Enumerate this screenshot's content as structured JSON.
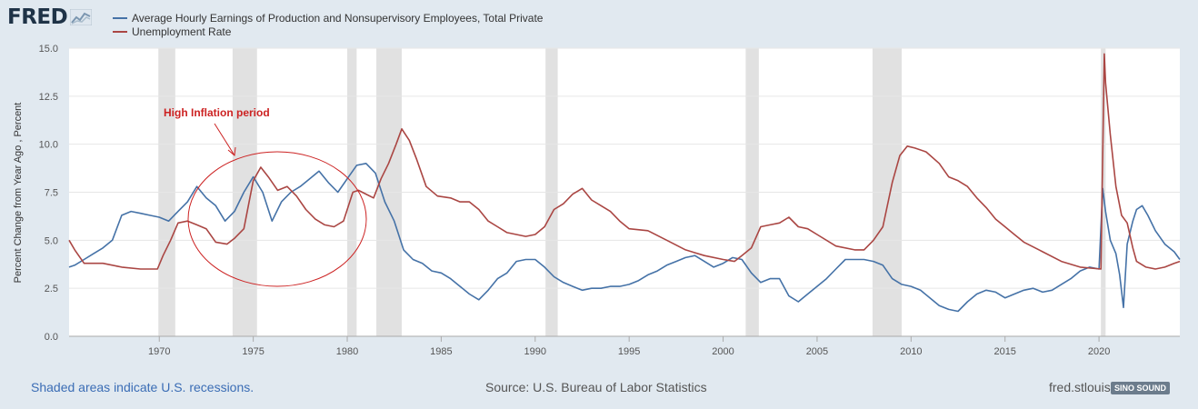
{
  "header": {
    "logo_text": "FRED",
    "logo_icon": "line-graph-icon"
  },
  "colors": {
    "series_earnings": "#4572a7",
    "series_unemployment": "#aa4643",
    "recession_shade": "#e1e1e1",
    "annotation": "#cc2222",
    "plot_background": "#ffffff",
    "page_background": "#e1e9f0"
  },
  "annotation": {
    "text": "High Inflation period"
  },
  "footer": {
    "recessions_note": "Shaded areas indicate U.S. recessions.",
    "source": "Source: U.S. Bureau of Labor Statistics",
    "site": "fred.stlouisfed.org",
    "watermark": "SINO SOUND"
  },
  "chart_data": {
    "type": "line",
    "title": "",
    "xlabel": "",
    "ylabel": "Percent Change from Year Ago , Percent",
    "xlim": [
      1965.2,
      2024.3
    ],
    "ylim": [
      0,
      15
    ],
    "yticks": [
      0.0,
      2.5,
      5.0,
      7.5,
      10.0,
      12.5,
      15.0
    ],
    "ytick_labels": [
      "0.0",
      "2.5",
      "5.0",
      "7.5",
      "10.0",
      "12.5",
      "15.0"
    ],
    "xticks": [
      1970,
      1975,
      1980,
      1985,
      1990,
      1995,
      2000,
      2005,
      2010,
      2015,
      2020
    ],
    "xtick_labels": [
      "1970",
      "1975",
      "1980",
      "1985",
      "1990",
      "1995",
      "2000",
      "2005",
      "2010",
      "2015",
      "2020"
    ],
    "grid": true,
    "legend_position": "top-left",
    "recessions": [
      [
        1969.95,
        1970.85
      ],
      [
        1973.9,
        1975.2
      ],
      [
        1980.0,
        1980.5
      ],
      [
        1981.55,
        1982.9
      ],
      [
        1990.55,
        1991.2
      ],
      [
        2001.2,
        2001.9
      ],
      [
        2007.95,
        2009.5
      ],
      [
        2020.1,
        2020.35
      ]
    ],
    "series": [
      {
        "name": "Average Hourly Earnings of Production and Nonsupervisory Employees, Total Private",
        "color": "#4572a7",
        "x": [
          1965.2,
          1965.5,
          1966.0,
          1966.5,
          1967.0,
          1967.5,
          1968.0,
          1968.5,
          1969.0,
          1969.5,
          1970.0,
          1970.5,
          1971.0,
          1971.5,
          1972.0,
          1972.5,
          1973.0,
          1973.5,
          1974.0,
          1974.5,
          1975.0,
          1975.5,
          1976.0,
          1976.5,
          1977.0,
          1977.5,
          1978.0,
          1978.5,
          1979.0,
          1979.5,
          1980.0,
          1980.5,
          1981.0,
          1981.5,
          1982.0,
          1982.5,
          1983.0,
          1983.5,
          1984.0,
          1984.5,
          1985.0,
          1985.5,
          1986.0,
          1986.5,
          1987.0,
          1987.5,
          1988.0,
          1988.5,
          1989.0,
          1989.5,
          1990.0,
          1990.5,
          1991.0,
          1991.5,
          1992.0,
          1992.5,
          1993.0,
          1993.5,
          1994.0,
          1994.5,
          1995.0,
          1995.5,
          1996.0,
          1996.5,
          1997.0,
          1997.5,
          1998.0,
          1998.5,
          1999.0,
          1999.5,
          2000.0,
          2000.5,
          2001.0,
          2001.5,
          2002.0,
          2002.5,
          2003.0,
          2003.5,
          2004.0,
          2004.5,
          2005.0,
          2005.5,
          2006.0,
          2006.5,
          2007.0,
          2007.5,
          2008.0,
          2008.5,
          2009.0,
          2009.5,
          2010.0,
          2010.5,
          2011.0,
          2011.5,
          2012.0,
          2012.5,
          2013.0,
          2013.5,
          2014.0,
          2014.5,
          2015.0,
          2015.5,
          2016.0,
          2016.5,
          2017.0,
          2017.5,
          2018.0,
          2018.5,
          2019.0,
          2019.5,
          2020.0,
          2020.2,
          2020.35,
          2020.6,
          2020.9,
          2021.1,
          2021.3,
          2021.5,
          2021.8,
          2022.0,
          2022.3,
          2022.6,
          2023.0,
          2023.5,
          2024.0,
          2024.3
        ],
        "values": [
          3.6,
          3.7,
          4.0,
          4.3,
          4.6,
          5.0,
          6.3,
          6.5,
          6.4,
          6.3,
          6.2,
          6.0,
          6.5,
          7.0,
          7.8,
          7.2,
          6.8,
          6.0,
          6.5,
          7.5,
          8.3,
          7.5,
          6.0,
          7.0,
          7.5,
          7.8,
          8.2,
          8.6,
          8.0,
          7.5,
          8.2,
          8.9,
          9.0,
          8.5,
          7.0,
          6.0,
          4.5,
          4.0,
          3.8,
          3.4,
          3.3,
          3.0,
          2.6,
          2.2,
          1.9,
          2.4,
          3.0,
          3.3,
          3.9,
          4.0,
          4.0,
          3.6,
          3.1,
          2.8,
          2.6,
          2.4,
          2.5,
          2.5,
          2.6,
          2.6,
          2.7,
          2.9,
          3.2,
          3.4,
          3.7,
          3.9,
          4.1,
          4.2,
          3.9,
          3.6,
          3.8,
          4.1,
          4.0,
          3.3,
          2.8,
          3.0,
          3.0,
          2.1,
          1.8,
          2.2,
          2.6,
          3.0,
          3.5,
          4.0,
          4.0,
          4.0,
          3.9,
          3.7,
          3.0,
          2.7,
          2.6,
          2.4,
          2.0,
          1.6,
          1.4,
          1.3,
          1.8,
          2.2,
          2.4,
          2.3,
          2.0,
          2.2,
          2.4,
          2.5,
          2.3,
          2.4,
          2.7,
          3.0,
          3.4,
          3.6,
          3.5,
          7.7,
          6.5,
          5.0,
          4.3,
          3.2,
          1.5,
          4.8,
          6.0,
          6.6,
          6.8,
          6.3,
          5.5,
          4.8,
          4.4,
          4.0
        ]
      },
      {
        "name": "Unemployment Rate",
        "color": "#aa4643",
        "x": [
          1965.2,
          1965.5,
          1966.0,
          1967.0,
          1968.0,
          1969.0,
          1969.9,
          1970.2,
          1970.6,
          1971.0,
          1971.5,
          1972.0,
          1972.5,
          1973.0,
          1973.6,
          1974.0,
          1974.5,
          1975.0,
          1975.4,
          1975.8,
          1976.3,
          1976.8,
          1977.3,
          1977.8,
          1978.3,
          1978.8,
          1979.3,
          1979.8,
          1980.3,
          1980.6,
          1981.0,
          1981.4,
          1981.8,
          1982.2,
          1982.6,
          1982.9,
          1983.3,
          1983.7,
          1984.2,
          1984.8,
          1985.5,
          1986.0,
          1986.5,
          1987.0,
          1987.5,
          1988.0,
          1988.5,
          1989.0,
          1989.5,
          1990.0,
          1990.5,
          1991.0,
          1991.5,
          1992.0,
          1992.5,
          1993.0,
          1993.5,
          1994.0,
          1994.5,
          1995.0,
          1996.0,
          1997.0,
          1998.0,
          1999.0,
          2000.0,
          2000.6,
          2001.0,
          2001.5,
          2002.0,
          2002.5,
          2003.0,
          2003.5,
          2004.0,
          2004.5,
          2005.0,
          2006.0,
          2007.0,
          2007.5,
          2008.0,
          2008.5,
          2009.0,
          2009.4,
          2009.8,
          2010.2,
          2010.8,
          2011.5,
          2012.0,
          2012.5,
          2013.0,
          2013.5,
          2014.0,
          2014.5,
          2015.0,
          2015.5,
          2016.0,
          2017.0,
          2018.0,
          2019.0,
          2020.1,
          2020.28,
          2020.35,
          2020.6,
          2020.9,
          2021.2,
          2021.5,
          2021.8,
          2022.0,
          2022.5,
          2023.0,
          2023.5,
          2024.0,
          2024.3
        ],
        "values": [
          5.0,
          4.5,
          3.8,
          3.8,
          3.6,
          3.5,
          3.5,
          4.2,
          5.0,
          5.9,
          6.0,
          5.8,
          5.6,
          4.9,
          4.8,
          5.1,
          5.6,
          8.1,
          8.8,
          8.3,
          7.6,
          7.8,
          7.3,
          6.6,
          6.1,
          5.8,
          5.7,
          6.0,
          7.5,
          7.6,
          7.4,
          7.2,
          8.2,
          9.0,
          10.0,
          10.8,
          10.2,
          9.2,
          7.8,
          7.3,
          7.2,
          7.0,
          7.0,
          6.6,
          6.0,
          5.7,
          5.4,
          5.3,
          5.2,
          5.3,
          5.7,
          6.6,
          6.9,
          7.4,
          7.7,
          7.1,
          6.8,
          6.5,
          6.0,
          5.6,
          5.5,
          5.0,
          4.5,
          4.2,
          4.0,
          3.9,
          4.2,
          4.6,
          5.7,
          5.8,
          5.9,
          6.2,
          5.7,
          5.6,
          5.3,
          4.7,
          4.5,
          4.5,
          5.0,
          5.7,
          8.0,
          9.4,
          9.9,
          9.8,
          9.6,
          9.0,
          8.3,
          8.1,
          7.8,
          7.2,
          6.7,
          6.1,
          5.7,
          5.3,
          4.9,
          4.4,
          3.9,
          3.6,
          3.5,
          14.7,
          13.2,
          10.5,
          7.8,
          6.3,
          5.9,
          4.6,
          3.9,
          3.6,
          3.5,
          3.6,
          3.8,
          3.9
        ]
      }
    ]
  }
}
